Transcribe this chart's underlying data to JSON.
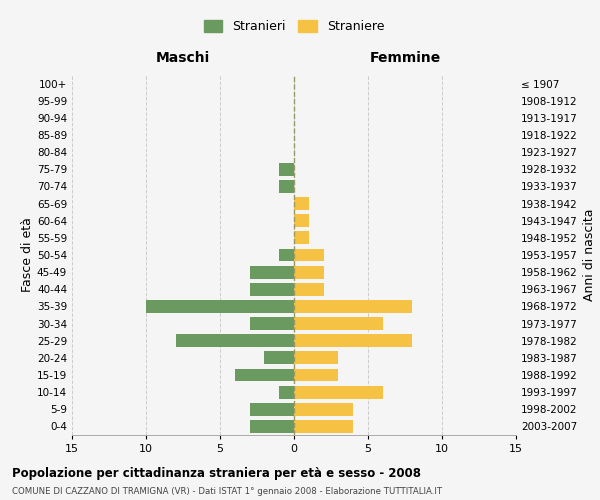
{
  "age_groups": [
    "0-4",
    "5-9",
    "10-14",
    "15-19",
    "20-24",
    "25-29",
    "30-34",
    "35-39",
    "40-44",
    "45-49",
    "50-54",
    "55-59",
    "60-64",
    "65-69",
    "70-74",
    "75-79",
    "80-84",
    "85-89",
    "90-94",
    "95-99",
    "100+"
  ],
  "birth_years": [
    "2003-2007",
    "1998-2002",
    "1993-1997",
    "1988-1992",
    "1983-1987",
    "1978-1982",
    "1973-1977",
    "1968-1972",
    "1963-1967",
    "1958-1962",
    "1953-1957",
    "1948-1952",
    "1943-1947",
    "1938-1942",
    "1933-1937",
    "1928-1932",
    "1923-1927",
    "1918-1922",
    "1913-1917",
    "1908-1912",
    "≤ 1907"
  ],
  "maschi": [
    3,
    3,
    1,
    4,
    2,
    8,
    3,
    10,
    3,
    3,
    1,
    0,
    0,
    0,
    1,
    1,
    0,
    0,
    0,
    0,
    0
  ],
  "femmine": [
    4,
    4,
    6,
    3,
    3,
    8,
    6,
    8,
    2,
    2,
    2,
    1,
    1,
    1,
    0,
    0,
    0,
    0,
    0,
    0,
    0
  ],
  "color_maschi": "#6a9a5f",
  "color_femmine": "#f5c243",
  "xlim": 15,
  "title_main": "Popolazione per cittadinanza straniera per età e sesso - 2008",
  "title_sub": "COMUNE DI CAZZANO DI TRAMIGNA (VR) - Dati ISTAT 1° gennaio 2008 - Elaborazione TUTTITALIA.IT",
  "label_maschi": "Stranieri",
  "label_femmine": "Straniere",
  "ylabel_left": "Fasce di età",
  "ylabel_right": "Anni di nascita",
  "header_left": "Maschi",
  "header_right": "Femmine",
  "xticks": [
    -15,
    -10,
    -5,
    0,
    5,
    10,
    15
  ],
  "xticklabels": [
    "15",
    "10",
    "5",
    "0",
    "5",
    "10",
    "15"
  ],
  "background_color": "#f5f5f5",
  "grid_color": "#cccccc",
  "centerline_color": "#999966",
  "bar_height": 0.75
}
